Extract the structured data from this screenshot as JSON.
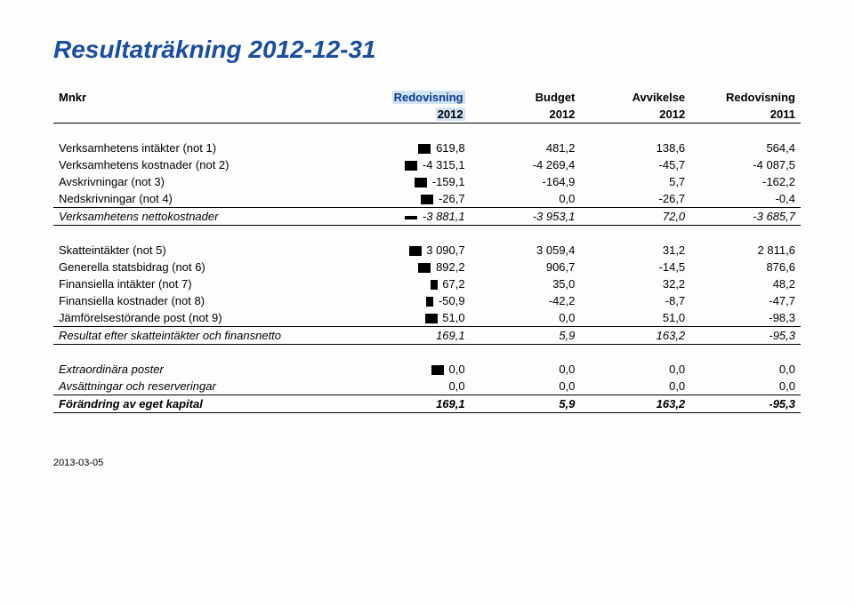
{
  "title": "Resultaträkning 2012-12-31",
  "unit": "Mnkr",
  "headers": {
    "c1a": "Redovisning",
    "c1b": "2012",
    "c2a": "Budget",
    "c2b": "2012",
    "c3a": "Avvikelse",
    "c3b": "2012",
    "c4a": "Redovisning",
    "c4b": "2011"
  },
  "rows": {
    "r1": {
      "label": "Verksamhetens intäkter (not 1)",
      "v": [
        "619,8",
        "481,2",
        "138,6",
        "564,4"
      ]
    },
    "r2": {
      "label": "Verksamhetens kostnader (not 2)",
      "v": [
        "-4 315,1",
        "-4 269,4",
        "-45,7",
        "-4 087,5"
      ]
    },
    "r3": {
      "label": "Avskrivningar (not 3)",
      "v": [
        "-159,1",
        "-164,9",
        "5,7",
        "-162,2"
      ]
    },
    "r4": {
      "label": "Nedskrivningar (not 4)",
      "v": [
        "-26,7",
        "0,0",
        "-26,7",
        "-0,4"
      ]
    },
    "r5": {
      "label": "Verksamhetens nettokostnader",
      "v": [
        "-3 881,1",
        "-3 953,1",
        "72,0",
        "-3 685,7"
      ]
    },
    "r6": {
      "label": "Skatteintäkter (not 5)",
      "v": [
        "3 090,7",
        "3 059,4",
        "31,2",
        "2 811,6"
      ]
    },
    "r7": {
      "label": "Generella statsbidrag (not 6)",
      "v": [
        "892,2",
        "906,7",
        "-14,5",
        "876,6"
      ]
    },
    "r8": {
      "label": "Finansiella intäkter (not 7)",
      "v": [
        "67,2",
        "35,0",
        "32,2",
        "48,2"
      ]
    },
    "r9": {
      "label": "Finansiella kostnader (not 8)",
      "v": [
        "-50,9",
        "-42,2",
        "-8,7",
        "-47,7"
      ]
    },
    "r10": {
      "label": "Jämförelsestörande post (not 9)",
      "v": [
        "51,0",
        "0,0",
        "51,0",
        "-98,3"
      ]
    },
    "r11": {
      "label": "Resultat efter skatteintäkter och finansnetto",
      "v": [
        "169,1",
        "5,9",
        "163,2",
        "-95,3"
      ]
    },
    "r12": {
      "label": "Extraordinära poster",
      "v": [
        "0,0",
        "0,0",
        "0,0",
        "0,0"
      ]
    },
    "r13": {
      "label": "Avsättningar och reserveringar",
      "v": [
        "0,0",
        "0,0",
        "0,0",
        "0,0"
      ]
    },
    "r14": {
      "label": "Förändring av eget kapital",
      "v": [
        "169,1",
        "5,9",
        "163,2",
        "-95,3"
      ]
    }
  },
  "footer": "2013-03-05"
}
